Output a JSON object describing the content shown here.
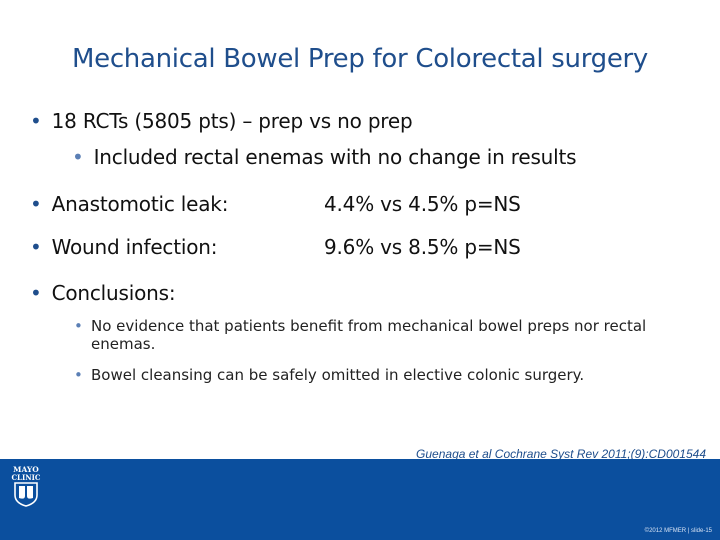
{
  "slide": {
    "title": "Mechanical Bowel Prep for Colorectal surgery",
    "bullet_char": "•",
    "bullets": {
      "rcts": "18 RCTs (5805 pts) – prep vs no prep",
      "enemas": "Included rectal enemas with no change in results",
      "leak_label": "Anastomotic leak:",
      "leak_value": "4.4% vs 4.5% p=NS",
      "wound_label": "Wound infection:",
      "wound_value": "9.6% vs 8.5% p=NS",
      "conclusions": "Conclusions:",
      "conclusion_1": "No evidence that patients benefit from mechanical bowel preps nor rectal enemas.",
      "conclusion_2": "Bowel cleansing can be safely omitted in elective colonic surgery."
    },
    "citation": "Guenaga et al Cochrane Syst Rev 2011;(9):CD001544"
  },
  "footer": {
    "logo_text_1": "MAYO",
    "logo_text_2": "CLINIC",
    "copyright": "©2012 MFMER | slide-15"
  },
  "colors": {
    "title": "#1f4e8c",
    "footer_bg": "#0b4f9e",
    "sub_bullet": "#5b7fb5"
  }
}
